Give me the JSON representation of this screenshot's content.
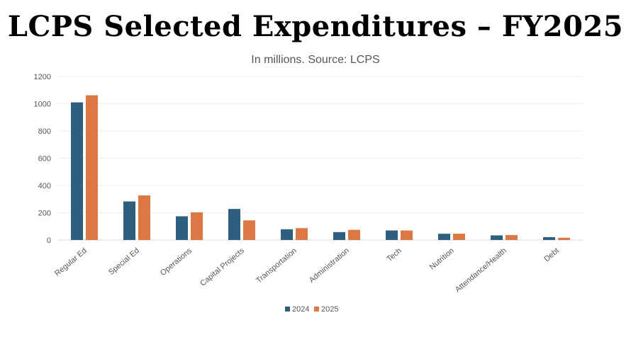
{
  "chart_data": {
    "type": "bar",
    "title": "LCPS Selected Expenditures – FY2025",
    "subtitle": "In millions. Source: LCPS",
    "categories": [
      "Regular Ed",
      "Special Ed",
      "Operations",
      "Capital Projects",
      "Transportation",
      "Administration",
      "Tech",
      "Nutrition",
      "Attendance/Health",
      "Debt"
    ],
    "series": [
      {
        "name": "2024",
        "color": "#2e5f7f",
        "values": [
          1010,
          283,
          174,
          228,
          79,
          58,
          70,
          46,
          34,
          21
        ]
      },
      {
        "name": "2025",
        "color": "#dc7843",
        "values": [
          1062,
          327,
          203,
          144,
          87,
          75,
          70,
          46,
          36,
          17
        ]
      }
    ],
    "ylim": [
      0,
      1200
    ],
    "yticks": [
      0,
      200,
      400,
      600,
      800,
      1000,
      1200
    ],
    "grid": true,
    "legend": "bottom"
  }
}
